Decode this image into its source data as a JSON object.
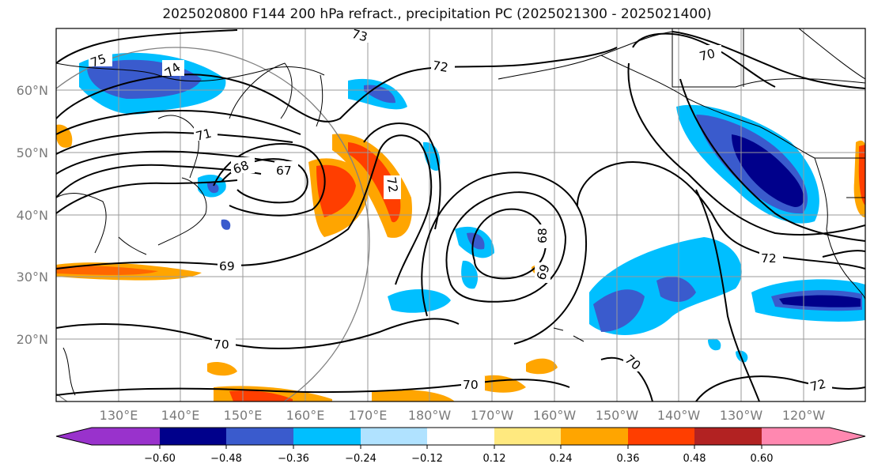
{
  "title": "2025020800 F144 200 hPa refract., precipitation PC (2025021300 - 2025021400)",
  "map": {
    "lon_labels": [
      "130°E",
      "140°E",
      "150°E",
      "160°E",
      "170°E",
      "180°W",
      "170°W",
      "160°W",
      "150°W",
      "140°W",
      "130°W",
      "120°W"
    ],
    "lat_labels": [
      "60°N",
      "50°N",
      "40°N",
      "30°N",
      "20°N"
    ],
    "contour_labels": [
      "75",
      "74",
      "73",
      "72",
      "71",
      "68",
      "67",
      "72",
      "69",
      "68",
      "69",
      "70",
      "70",
      "70",
      "70",
      "72",
      "72"
    ],
    "colors": {
      "frame": "#000000",
      "coast": "#000000",
      "grid": "#999999",
      "circle": "#808080"
    }
  },
  "colorbar": {
    "ticks": [
      "−0.60",
      "−0.48",
      "−0.36",
      "−0.24",
      "−0.12",
      "0.12",
      "0.24",
      "0.36",
      "0.48",
      "0.60"
    ],
    "colors": [
      "#9932cc",
      "#00008b",
      "#3a5bcd",
      "#00bfff",
      "#b0e2ff",
      "#ffffff",
      "#ffe97f",
      "#ffa500",
      "#ff3e00",
      "#b22222",
      "#ff88b0"
    ]
  }
}
